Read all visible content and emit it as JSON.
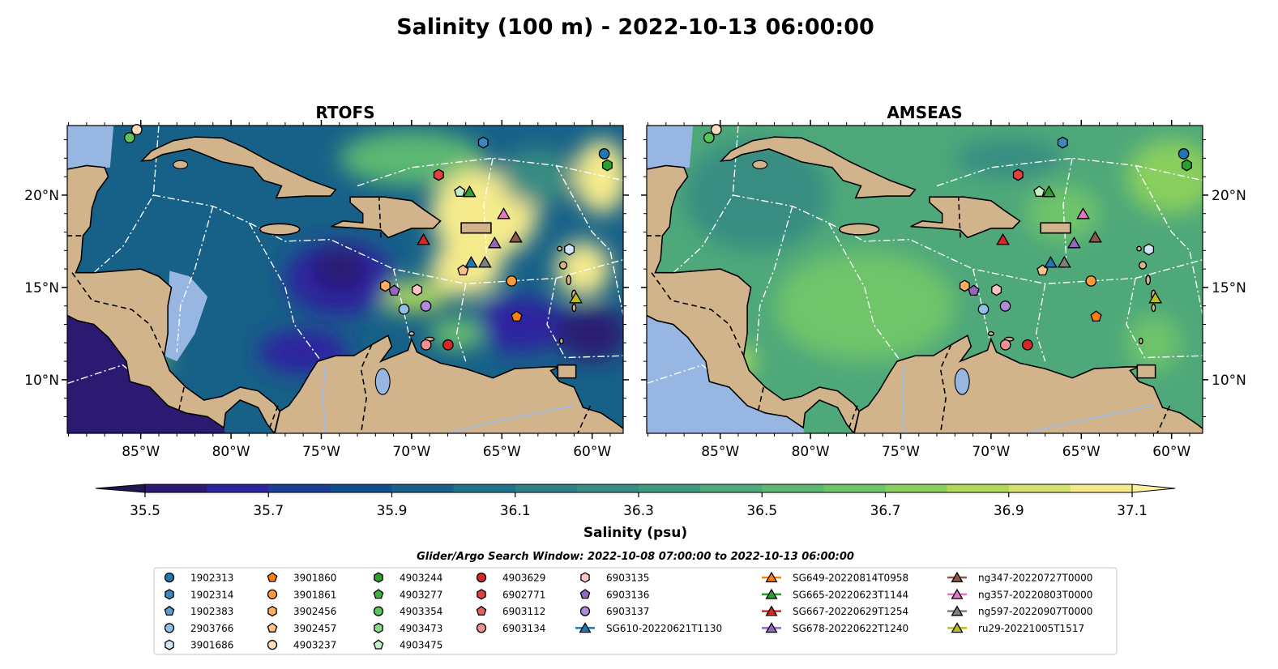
{
  "figure": {
    "title": "Salinity (100 m) - 2022-10-13 06:00:00",
    "panels": [
      {
        "title": "RTOFS"
      },
      {
        "title": "AMSEAS"
      }
    ],
    "x_ticks": [
      "85°W",
      "80°W",
      "75°W",
      "70°W",
      "65°W",
      "60°W"
    ],
    "y_ticks": [
      "20°N",
      "15°N",
      "10°N"
    ],
    "colorbar": {
      "label": "Salinity (psu)",
      "ticks": [
        "35.5",
        "35.7",
        "35.9",
        "36.1",
        "36.3",
        "36.5",
        "36.7",
        "36.9",
        "37.1"
      ]
    },
    "search_window": "Glider/Argo Search Window: 2022-10-08 07:00:00 to 2022-10-13 06:00:00"
  },
  "chart_data": {
    "type": "heatmap",
    "variable": "Salinity (psu)",
    "depth": "100 m",
    "lon_ticks": [
      -85,
      -80,
      -75,
      -70,
      -65,
      -60
    ],
    "lat_ticks": [
      20,
      15,
      10
    ],
    "lonlim": [
      -89.07,
      -58.28
    ],
    "latlim": [
      7.1,
      23.77
    ],
    "levels": [
      35.5,
      35.6,
      35.7,
      35.8,
      35.9,
      36.0,
      36.1,
      36.2,
      36.3,
      36.4,
      36.5,
      36.6,
      36.7,
      36.8,
      36.9,
      37.0,
      37.1
    ],
    "colors": [
      "#2c1a72",
      "#2d24a0",
      "#1c3c96",
      "#0e4f8c",
      "#176188",
      "#21728a",
      "#2e8085",
      "#388c82",
      "#40997f",
      "#4ea87a",
      "#5cb872",
      "#6fc46a",
      "#8acf5d",
      "#b0d95c",
      "#d4e070",
      "#f5ea8c"
    ],
    "under_color": "#231553",
    "over_color": "#fbefa0",
    "legend": [
      {
        "label": "1902313",
        "color": "#1f77b4",
        "shape": "circle",
        "lon": -59.33,
        "lat": 22.24
      },
      {
        "label": "1902314",
        "color": "#3a88c0",
        "shape": "hexagon",
        "lon": -66.03,
        "lat": 22.85
      },
      {
        "label": "1902383",
        "color": "#5a9dd0",
        "shape": "pentagon"
      },
      {
        "label": "2903766",
        "color": "#8fc1e8",
        "shape": "circle",
        "lon": -70.42,
        "lat": 13.82
      },
      {
        "label": "3901686",
        "color": "#d0e6f8",
        "shape": "hexagon",
        "lon": -61.26,
        "lat": 17.06
      },
      {
        "label": "3901860",
        "color": "#ff7f0e",
        "shape": "pentagon",
        "lon": -64.18,
        "lat": 13.42
      },
      {
        "label": "3901861",
        "color": "#ff9a3c",
        "shape": "circle",
        "lon": -64.46,
        "lat": 15.35
      },
      {
        "label": "3902456",
        "color": "#ffad60",
        "shape": "hexagon",
        "lon": -71.46,
        "lat": 15.09
      },
      {
        "label": "3902457",
        "color": "#ffc38a",
        "shape": "pentagon",
        "lon": -67.15,
        "lat": 15.92
      },
      {
        "label": "4903237",
        "color": "#ffdcbc",
        "shape": "circle",
        "lon": -85.22,
        "lat": 23.55
      },
      {
        "label": "4903244",
        "color": "#2ca02c",
        "shape": "hexagon",
        "lon": -59.16,
        "lat": 21.62
      },
      {
        "label": "4903277",
        "color": "#3cb23c",
        "shape": "pentagon"
      },
      {
        "label": "4903354",
        "color": "#5cc45c",
        "shape": "circle",
        "lon": -85.62,
        "lat": 23.11
      },
      {
        "label": "4903473",
        "color": "#8cd98c",
        "shape": "hexagon"
      },
      {
        "label": "4903475",
        "color": "#c3f0c3",
        "shape": "pentagon",
        "lon": -67.33,
        "lat": 20.18
      },
      {
        "label": "4903629",
        "color": "#d62728",
        "shape": "circle",
        "lon": -67.98,
        "lat": 11.89
      },
      {
        "label": "6902771",
        "color": "#e04040",
        "shape": "hexagon",
        "lon": -68.5,
        "lat": 21.1
      },
      {
        "label": "6903112",
        "color": "#e86060",
        "shape": "pentagon"
      },
      {
        "label": "6903134",
        "color": "#f09090",
        "shape": "circle",
        "lon": -69.2,
        "lat": 11.89
      },
      {
        "label": "6903135",
        "color": "#fbc4c4",
        "shape": "hexagon",
        "lon": -69.7,
        "lat": 14.87
      },
      {
        "label": "6903136",
        "color": "#9467bd",
        "shape": "pentagon",
        "lon": -70.96,
        "lat": 14.82
      },
      {
        "label": "6903137",
        "color": "#b08ad8",
        "shape": "circle",
        "lon": -69.21,
        "lat": 13.99
      },
      {
        "label": "SG610-20220621T1130",
        "color": "#1f77b4",
        "shape": "triangle",
        "lon": -66.7,
        "lat": 16.36
      },
      {
        "label": "SG649-20220814T0958",
        "color": "#ff7f0e",
        "shape": "triangle"
      },
      {
        "label": "SG665-20220623T1144",
        "color": "#2ca02c",
        "shape": "triangle",
        "lon": -66.79,
        "lat": 20.18
      },
      {
        "label": "SG667-20220629T1254",
        "color": "#d62728",
        "shape": "triangle",
        "lon": -69.34,
        "lat": 17.59
      },
      {
        "label": "SG678-20220622T1240",
        "color": "#9467bd",
        "shape": "triangle",
        "lon": -65.4,
        "lat": 17.41
      },
      {
        "label": "ng347-20220727T0000",
        "color": "#8c564b",
        "shape": "triangle",
        "lon": -64.23,
        "lat": 17.72
      },
      {
        "label": "ng357-20220803T0000",
        "color": "#e377c2",
        "shape": "triangle",
        "lon": -64.9,
        "lat": 18.99
      },
      {
        "label": "ng597-20220907T0000",
        "color": "#7f7f7f",
        "shape": "triangle",
        "lon": -65.94,
        "lat": 16.36
      },
      {
        "label": "ru29-20221005T1517",
        "color": "#bcbd22",
        "shape": "triangle",
        "lon": -60.9,
        "lat": 14.43
      }
    ]
  }
}
